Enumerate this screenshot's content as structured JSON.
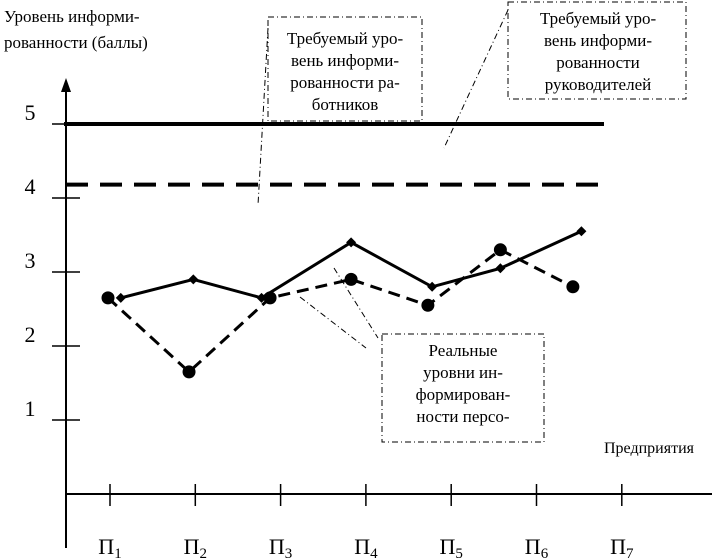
{
  "chart_data": {
    "type": "line",
    "ylabel": "Уровень информи-\nрованности (баллы)",
    "xlabel": "Предприятия",
    "categories": [
      "П1",
      "П2",
      "П3",
      "П4",
      "П5",
      "П6",
      "П7"
    ],
    "category_labels": [
      {
        "base": "П",
        "sub": "1"
      },
      {
        "base": "П",
        "sub": "2"
      },
      {
        "base": "П",
        "sub": "3"
      },
      {
        "base": "П",
        "sub": "4"
      },
      {
        "base": "П",
        "sub": "5"
      },
      {
        "base": "П",
        "sub": "6"
      },
      {
        "base": "П",
        "sub": "7"
      }
    ],
    "yticks": [
      "1",
      "2",
      "3",
      "4",
      "5"
    ],
    "ylim": [
      0,
      5.5
    ],
    "series": [
      {
        "style": "solid",
        "marker": "diamond",
        "x": [
          0.15,
          1,
          1.8,
          2.85,
          3.8,
          4.6,
          5.55
        ],
        "values": [
          2.65,
          2.9,
          2.65,
          3.4,
          2.8,
          3.05,
          3.55
        ]
      },
      {
        "style": "dashed",
        "marker": "circle",
        "x": [
          0,
          0.95,
          1.9,
          2.85,
          3.75,
          4.6,
          5.45
        ],
        "values": [
          2.65,
          1.65,
          2.65,
          2.9,
          2.55,
          3.3,
          2.8
        ]
      }
    ],
    "reference_lines": [
      {
        "value": 5,
        "style": "solid"
      },
      {
        "value": 4.18,
        "style": "dashed"
      }
    ],
    "annotations": [
      "Требуемый уро-\nвень информи-\nрованности ра-\nботников",
      "Требуемый уро-\nвень информи-\nрованности\nруководителей",
      "Реальные\nуровни ин-\nформирован-\nности персо-"
    ],
    "grid": false,
    "legend": "none"
  }
}
